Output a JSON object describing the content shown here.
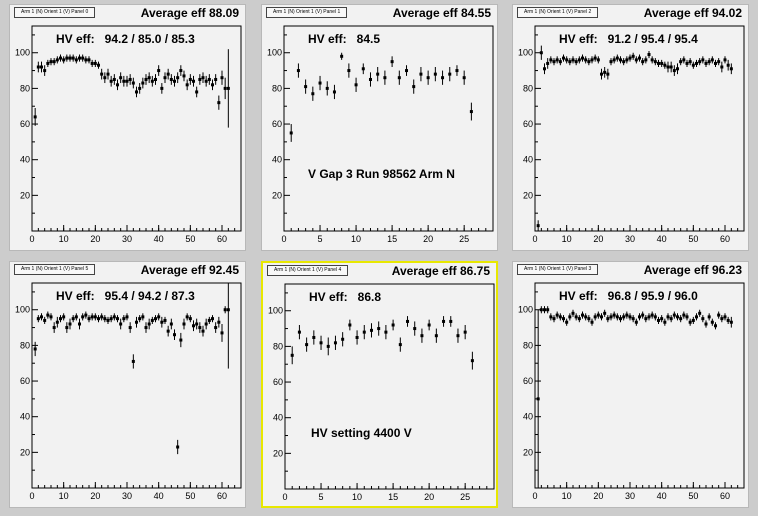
{
  "axes": {
    "x_ticks": [
      0,
      10,
      20,
      30,
      40,
      50,
      60
    ],
    "x_ticks_short": [
      0,
      5,
      10,
      15,
      20,
      25
    ],
    "y_ticks": [
      20,
      40,
      60,
      80,
      100
    ]
  },
  "panels": [
    {
      "title": "Arm 1 (N) Orient 1 (V) Panel 0",
      "average": "Average eff 88.09",
      "hv": "HV eff:   94.2 / 85.0 / 85.3",
      "note": "",
      "selected": false,
      "chart_data": {
        "type": "scatter",
        "xlim": [
          0,
          66
        ],
        "ylim": [
          0,
          115
        ],
        "xticks": [
          0,
          10,
          20,
          30,
          40,
          50,
          60
        ],
        "x": [
          1,
          2,
          3,
          4,
          5,
          6,
          7,
          8,
          9,
          10,
          11,
          12,
          13,
          14,
          15,
          16,
          17,
          18,
          19,
          20,
          21,
          22,
          23,
          24,
          25,
          26,
          27,
          28,
          29,
          30,
          31,
          32,
          33,
          34,
          35,
          36,
          37,
          38,
          39,
          40,
          41,
          42,
          43,
          44,
          45,
          46,
          47,
          48,
          49,
          50,
          51,
          52,
          53,
          54,
          55,
          56,
          57,
          58,
          59,
          60,
          61,
          62
        ],
        "y": [
          64,
          92,
          92,
          90,
          94,
          95,
          95,
          96,
          97,
          96,
          97,
          97,
          97,
          96,
          97,
          97,
          96,
          96,
          94,
          94,
          93,
          88,
          86,
          88,
          84,
          85,
          82,
          86,
          84,
          84,
          85,
          83,
          78,
          80,
          83,
          85,
          86,
          84,
          85,
          90,
          80,
          86,
          88,
          85,
          84,
          86,
          90,
          87,
          82,
          85,
          84,
          78,
          85,
          86,
          84,
          85,
          82,
          85,
          72,
          86,
          80,
          80
        ],
        "err": [
          5,
          3,
          3,
          3,
          2,
          2,
          2,
          2,
          2,
          2,
          2,
          2,
          2,
          2,
          2,
          2,
          2,
          2,
          2,
          2,
          2,
          3,
          3,
          3,
          3,
          3,
          3,
          3,
          3,
          3,
          3,
          3,
          3,
          3,
          3,
          3,
          3,
          3,
          3,
          3,
          3,
          3,
          3,
          3,
          3,
          3,
          3,
          3,
          3,
          3,
          3,
          3,
          3,
          3,
          3,
          3,
          3,
          3,
          4,
          4,
          6,
          22
        ]
      }
    },
    {
      "title": "Arm 1 (N) Orient 1 (V) Panel 1",
      "average": "Average eff 84.55",
      "hv": "HV eff:   84.5",
      "note": "V Gap 3 Run 98562 Arm N",
      "selected": false,
      "chart_data": {
        "type": "scatter",
        "xlim": [
          0,
          29
        ],
        "ylim": [
          0,
          115
        ],
        "xticks": [
          0,
          5,
          10,
          15,
          20,
          25
        ],
        "x": [
          1,
          2,
          3,
          4,
          5,
          6,
          7,
          8,
          9,
          10,
          11,
          12,
          13,
          14,
          15,
          16,
          17,
          18,
          19,
          20,
          21,
          22,
          23,
          24,
          25,
          26
        ],
        "y": [
          55,
          90,
          81,
          77,
          83,
          80,
          78,
          98,
          90,
          82,
          91,
          85,
          88,
          86,
          95,
          86,
          90,
          81,
          88,
          86,
          88,
          86,
          88,
          90,
          86,
          67
        ],
        "err": [
          5,
          4,
          4,
          4,
          4,
          4,
          4,
          2,
          4,
          4,
          3,
          4,
          4,
          4,
          3,
          4,
          3,
          4,
          4,
          4,
          4,
          4,
          4,
          3,
          4,
          5
        ]
      }
    },
    {
      "title": "Arm 1 (N) Orient 1 (V) Panel 2",
      "average": "Average eff 94.02",
      "hv": "HV eff:   91.2 / 95.4 / 95.4",
      "note": "",
      "selected": false,
      "chart_data": {
        "type": "scatter",
        "xlim": [
          0,
          66
        ],
        "ylim": [
          0,
          115
        ],
        "xticks": [
          0,
          10,
          20,
          30,
          40,
          50,
          60
        ],
        "x": [
          1,
          2,
          3,
          4,
          5,
          6,
          7,
          8,
          9,
          10,
          11,
          12,
          13,
          14,
          15,
          16,
          17,
          18,
          19,
          20,
          21,
          22,
          23,
          24,
          25,
          26,
          27,
          28,
          29,
          30,
          31,
          32,
          33,
          34,
          35,
          36,
          37,
          38,
          39,
          40,
          41,
          42,
          43,
          44,
          45,
          46,
          47,
          48,
          49,
          50,
          51,
          52,
          53,
          54,
          55,
          56,
          57,
          58,
          59,
          60,
          61,
          62
        ],
        "y": [
          3,
          100,
          91,
          94,
          96,
          95,
          96,
          95,
          97,
          96,
          95,
          96,
          95,
          96,
          97,
          96,
          95,
          96,
          97,
          96,
          88,
          89,
          88,
          95,
          96,
          97,
          96,
          95,
          96,
          97,
          98,
          96,
          97,
          95,
          96,
          99,
          96,
          95,
          94,
          94,
          93,
          92,
          92,
          90,
          91,
          95,
          96,
          94,
          95,
          93,
          94,
          95,
          96,
          94,
          95,
          96,
          94,
          95,
          92,
          96,
          93,
          91
        ],
        "err": [
          3,
          4,
          3,
          3,
          2,
          2,
          2,
          2,
          2,
          2,
          2,
          2,
          2,
          2,
          2,
          2,
          2,
          2,
          2,
          2,
          3,
          3,
          3,
          2,
          2,
          2,
          2,
          2,
          2,
          2,
          2,
          2,
          2,
          2,
          2,
          2,
          2,
          2,
          2,
          2,
          2,
          3,
          3,
          3,
          3,
          2,
          2,
          2,
          2,
          2,
          2,
          2,
          2,
          2,
          2,
          2,
          2,
          2,
          3,
          2,
          3,
          3
        ]
      }
    },
    {
      "title": "Arm 1 (N) Orient 1 (V) Panel 5",
      "average": "Average eff 92.45",
      "hv": "HV eff:   95.4 / 94.2 / 87.3",
      "note": "",
      "selected": false,
      "chart_data": {
        "type": "scatter",
        "xlim": [
          0,
          66
        ],
        "ylim": [
          0,
          115
        ],
        "xticks": [
          0,
          10,
          20,
          30,
          40,
          50,
          60
        ],
        "x": [
          1,
          2,
          3,
          4,
          5,
          6,
          7,
          8,
          9,
          10,
          11,
          12,
          13,
          14,
          15,
          16,
          17,
          18,
          19,
          20,
          21,
          22,
          23,
          24,
          25,
          26,
          27,
          28,
          29,
          30,
          31,
          32,
          33,
          34,
          35,
          36,
          37,
          38,
          39,
          40,
          41,
          42,
          43,
          44,
          45,
          46,
          47,
          48,
          49,
          50,
          51,
          52,
          53,
          54,
          55,
          56,
          57,
          58,
          59,
          60,
          61,
          62
        ],
        "y": [
          78,
          95,
          96,
          94,
          97,
          96,
          90,
          93,
          95,
          96,
          90,
          92,
          95,
          96,
          92,
          96,
          97,
          95,
          96,
          96,
          95,
          96,
          95,
          94,
          95,
          96,
          95,
          92,
          95,
          96,
          90,
          71,
          93,
          95,
          96,
          90,
          92,
          94,
          95,
          96,
          93,
          94,
          88,
          92,
          86,
          23,
          83,
          92,
          96,
          95,
          91,
          92,
          90,
          88,
          92,
          94,
          95,
          90,
          93,
          87,
          100,
          100
        ],
        "err": [
          4,
          2,
          2,
          2,
          2,
          2,
          3,
          3,
          2,
          2,
          3,
          3,
          2,
          2,
          3,
          2,
          2,
          2,
          2,
          2,
          2,
          2,
          2,
          2,
          2,
          2,
          2,
          3,
          2,
          2,
          3,
          4,
          3,
          2,
          2,
          3,
          3,
          2,
          2,
          2,
          3,
          2,
          3,
          3,
          3,
          4,
          4,
          3,
          2,
          2,
          3,
          3,
          3,
          3,
          3,
          2,
          2,
          3,
          3,
          5,
          2,
          33
        ]
      }
    },
    {
      "title": "Arm 1 (N) Orient 1 (V) Panel 4",
      "average": "Average eff 86.75",
      "hv": "HV eff:   86.8",
      "note": "HV setting 4400 V",
      "selected": true,
      "chart_data": {
        "type": "scatter",
        "xlim": [
          0,
          29
        ],
        "ylim": [
          0,
          115
        ],
        "xticks": [
          0,
          5,
          10,
          15,
          20,
          25
        ],
        "x": [
          1,
          2,
          3,
          4,
          5,
          6,
          7,
          8,
          9,
          10,
          11,
          12,
          13,
          14,
          15,
          16,
          17,
          18,
          19,
          20,
          21,
          22,
          23,
          24,
          25,
          26
        ],
        "y": [
          75,
          88,
          81,
          85,
          82,
          80,
          82,
          84,
          92,
          85,
          88,
          89,
          90,
          88,
          92,
          81,
          94,
          90,
          86,
          92,
          86,
          94,
          94,
          86,
          88,
          72
        ],
        "err": [
          5,
          4,
          4,
          4,
          4,
          5,
          4,
          4,
          3,
          4,
          4,
          4,
          4,
          4,
          3,
          4,
          3,
          4,
          4,
          3,
          4,
          3,
          3,
          4,
          4,
          5
        ]
      }
    },
    {
      "title": "Arm 1 (N) Orient 1 (V) Panel 3",
      "average": "Average eff 96.23",
      "hv": "HV eff:   96.8 / 95.9 / 96.0",
      "note": "",
      "selected": false,
      "chart_data": {
        "type": "scatter",
        "xlim": [
          0,
          66
        ],
        "ylim": [
          0,
          115
        ],
        "xticks": [
          0,
          10,
          20,
          30,
          40,
          50,
          60
        ],
        "x": [
          1,
          2,
          3,
          4,
          5,
          6,
          7,
          8,
          9,
          10,
          11,
          12,
          13,
          14,
          15,
          16,
          17,
          18,
          19,
          20,
          21,
          22,
          23,
          24,
          25,
          26,
          27,
          28,
          29,
          30,
          31,
          32,
          33,
          34,
          35,
          36,
          37,
          38,
          39,
          40,
          41,
          42,
          43,
          44,
          45,
          46,
          47,
          48,
          49,
          50,
          51,
          52,
          53,
          54,
          55,
          56,
          57,
          58,
          59,
          60,
          61,
          62
        ],
        "y": [
          50,
          100,
          100,
          100,
          96,
          95,
          97,
          96,
          95,
          93,
          96,
          98,
          96,
          95,
          97,
          96,
          95,
          93,
          96,
          97,
          96,
          98,
          95,
          96,
          97,
          96,
          95,
          96,
          97,
          96,
          95,
          93,
          96,
          97,
          95,
          96,
          97,
          96,
          94,
          95,
          93,
          96,
          95,
          97,
          96,
          95,
          97,
          96,
          93,
          94,
          96,
          98,
          95,
          92,
          96,
          93,
          91,
          97,
          95,
          96,
          94,
          93
        ],
        "err": [
          50,
          2,
          2,
          2,
          2,
          2,
          2,
          2,
          2,
          2,
          2,
          2,
          2,
          2,
          2,
          2,
          2,
          2,
          2,
          2,
          2,
          2,
          2,
          2,
          2,
          2,
          2,
          2,
          2,
          2,
          2,
          2,
          2,
          2,
          2,
          2,
          2,
          2,
          2,
          2,
          2,
          2,
          2,
          2,
          2,
          2,
          2,
          2,
          2,
          2,
          2,
          2,
          2,
          2,
          2,
          2,
          2,
          2,
          2,
          2,
          2,
          3
        ]
      }
    }
  ]
}
